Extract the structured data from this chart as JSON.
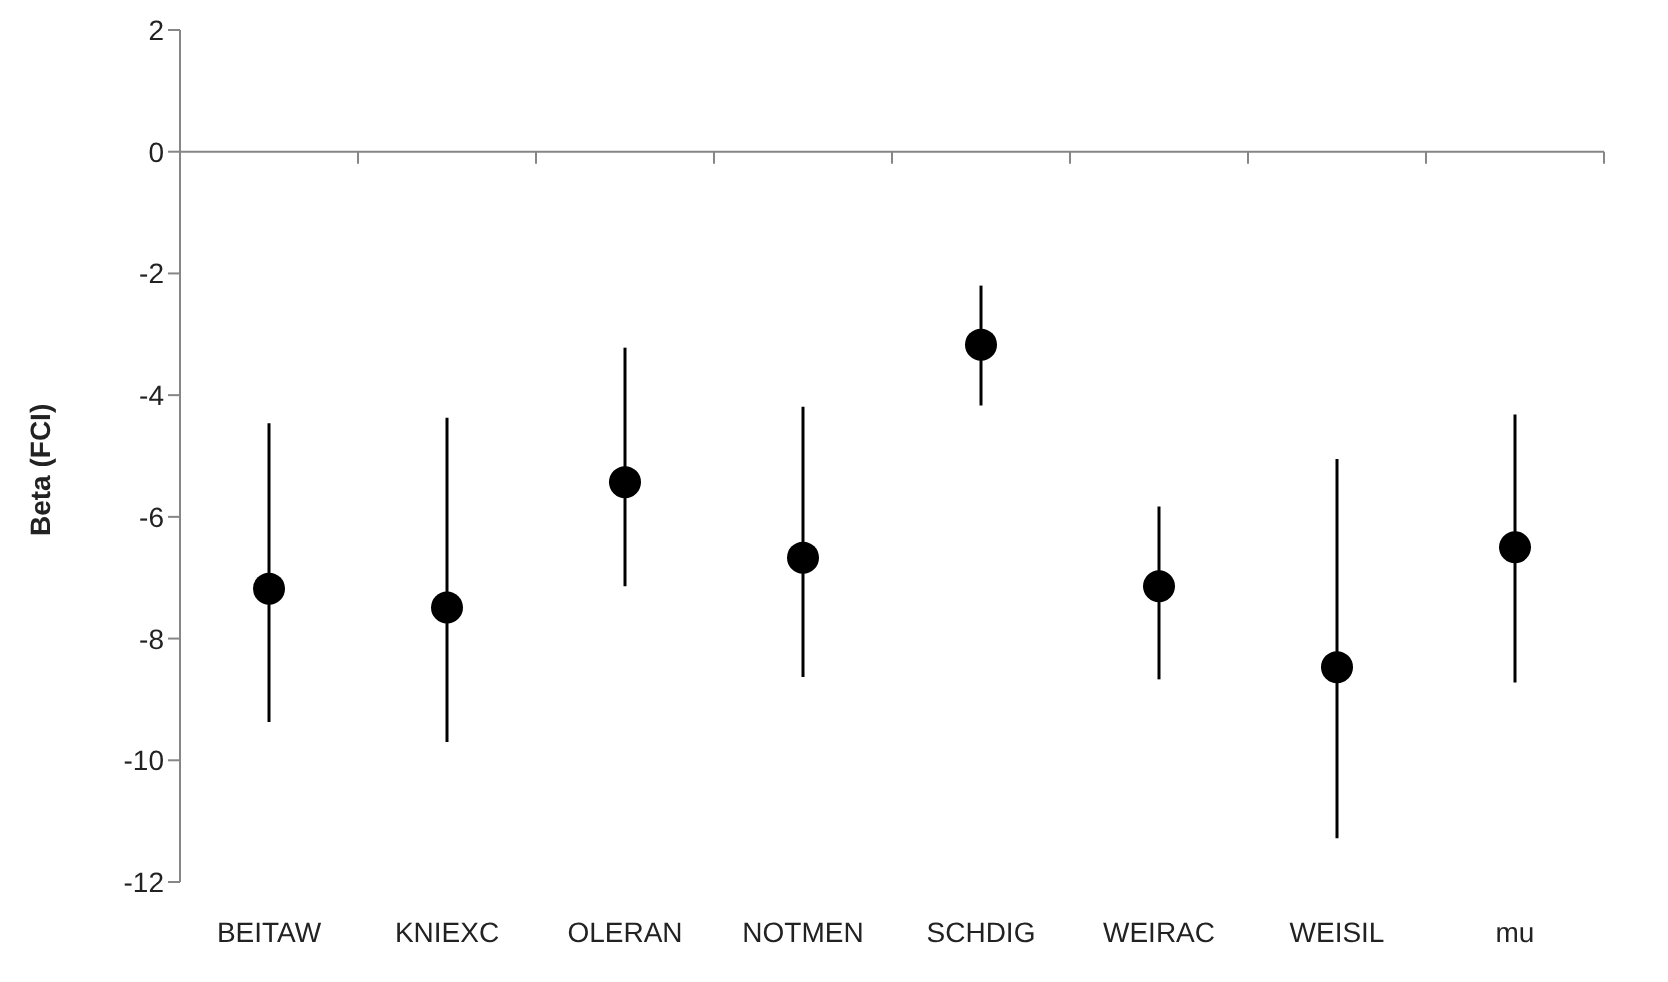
{
  "chart_data": {
    "type": "scatter",
    "ylabel": "Beta (FCI)",
    "categories": [
      "BEITAW",
      "KNIEXC",
      "OLERAN",
      "NOTMEN",
      "SCHDIG",
      "WEIRAC",
      "WEISIL",
      "mu"
    ],
    "values": [
      -7.18,
      -7.49,
      -5.43,
      -6.67,
      -3.17,
      -7.14,
      -8.47,
      -6.5
    ],
    "errors": [
      [
        -9.37,
        -4.46
      ],
      [
        -9.7,
        -4.37
      ],
      [
        -7.14,
        -3.22
      ],
      [
        -8.63,
        -4.19
      ],
      [
        -4.17,
        -2.2
      ],
      [
        -8.67,
        -5.83
      ],
      [
        -11.28,
        -5.05
      ],
      [
        -8.72,
        -4.32
      ]
    ],
    "color": "#000000",
    "marker": "circle",
    "ylim": [
      -12,
      2
    ],
    "yticks": [
      -12,
      -10,
      -8,
      -6,
      -4,
      -2,
      0,
      2
    ]
  }
}
